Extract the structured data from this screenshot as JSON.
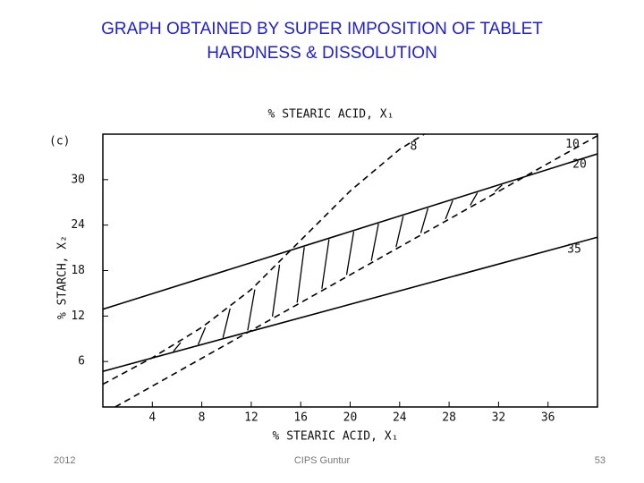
{
  "title": [
    "GRAPH OBTAINED BY SUPER IMPOSITION OF TABLET",
    "HARDNESS & DISSOLUTION"
  ],
  "footer": {
    "left": "2012",
    "center": "CIPS Guntur",
    "right": "53"
  },
  "chart_data": {
    "type": "line",
    "panel_label": "(c)",
    "top_axis_label": "% STEARIC ACID, X₁",
    "x_label": "% STEARIC ACID, X₁",
    "y_label": "% STARCH, X₂",
    "xlim": [
      0,
      40
    ],
    "ylim": [
      0,
      36
    ],
    "xticks": [
      4,
      8,
      12,
      16,
      20,
      24,
      28,
      32,
      36
    ],
    "yticks": [
      6,
      12,
      18,
      24,
      30
    ],
    "grid": false,
    "hatch_overlap": true,
    "series": [
      {
        "name": "8",
        "color": "#000000",
        "dashed": true,
        "x": [
          0,
          4,
          8,
          12,
          16,
          20,
          24,
          26
        ],
        "values": [
          3,
          6.5,
          10.5,
          15.5,
          22,
          28.5,
          34,
          36
        ]
      },
      {
        "name": "10",
        "color": "#000000",
        "dashed": true,
        "x": [
          1,
          40
        ],
        "values": [
          0,
          35.8
        ]
      },
      {
        "name": "20",
        "color": "#000000",
        "dashed": false,
        "x": [
          0,
          40
        ],
        "values": [
          12.9,
          33.4
        ]
      },
      {
        "name": "35",
        "color": "#000000",
        "dashed": false,
        "x": [
          0,
          40
        ],
        "values": [
          4.7,
          22.4
        ]
      }
    ]
  }
}
